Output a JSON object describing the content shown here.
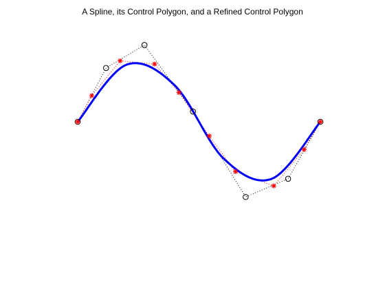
{
  "chart_data": {
    "type": "line",
    "title": "A Spline, its Control Polygon, and a Refined Control Polygon",
    "xlabel": "",
    "ylabel": "",
    "axes_visible": false,
    "grid": false,
    "legend": "none",
    "xlim": [
      0,
      1
    ],
    "ylim": [
      -1.6,
      1.6
    ],
    "series": [
      {
        "style": "spline-curve",
        "color": "#0000ff",
        "x": [
          0,
          0.2,
          0.4,
          0.6,
          0.8,
          1.0
        ],
        "y": [
          0,
          0.72,
          0.46,
          -0.46,
          -0.72,
          0
        ]
      },
      {
        "style": "control-polygon",
        "color": "#000000",
        "marker": "circle",
        "x": [
          0,
          0.117,
          0.275,
          0.475,
          0.692,
          0.867,
          1.0
        ],
        "y": [
          0,
          0.68,
          0.97,
          0.13,
          -0.95,
          -0.72,
          0
        ]
      },
      {
        "style": "refined-control-polygon",
        "color": "#ff0000",
        "marker": "star",
        "x": [
          0,
          0.058,
          0.175,
          0.317,
          0.417,
          0.542,
          0.65,
          0.808,
          0.933,
          1.0
        ],
        "y": [
          0,
          0.33,
          0.77,
          0.73,
          0.37,
          -0.18,
          -0.63,
          -0.81,
          -0.35,
          0
        ]
      }
    ]
  }
}
